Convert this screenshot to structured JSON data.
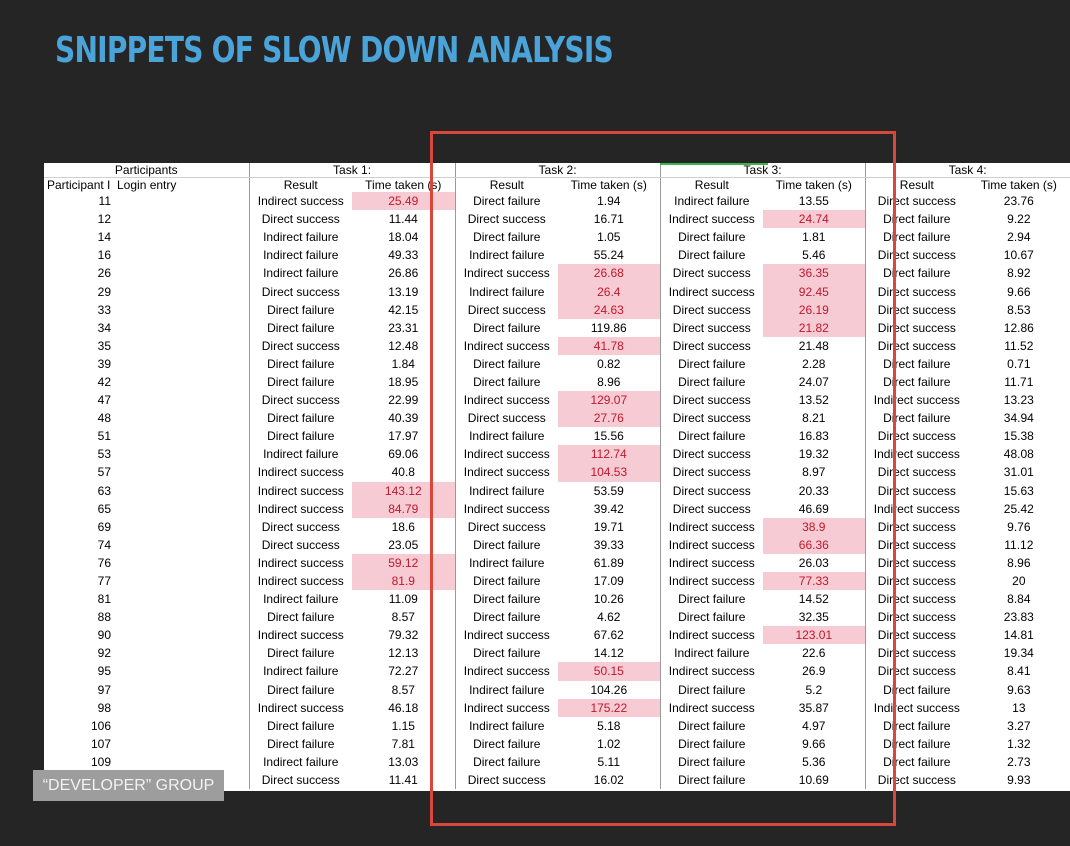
{
  "title": "SNIPPETS OF SLOW DOWN ANALYSIS",
  "badge": "“DEVELOPER” GROUP",
  "colors": {
    "title": "#4aa3d9",
    "highlight_fill": "#f6cbd3",
    "highlight_text": "#c0172d",
    "box": "#d9473b"
  },
  "table": {
    "group_headers": [
      "Participants",
      "Task 1:",
      "Task 2:",
      "Task 3:",
      "Task 4:"
    ],
    "col_headers": [
      "Participant I",
      "Login entry",
      "Result",
      "Time taken (s)",
      "Result",
      "Time taken (s)",
      "Result",
      "Time taken (s)",
      "Result",
      "Time taken (s)"
    ],
    "rows": [
      [
        "11",
        "Indirect success",
        "25.49",
        "Direct failure",
        "1.94",
        "Indirect failure",
        "13.55",
        "Direct success",
        "23.76"
      ],
      [
        "12",
        "Direct success",
        "11.44",
        "Direct success",
        "16.71",
        "Indirect success",
        "24.74",
        "Direct failure",
        "9.22"
      ],
      [
        "14",
        "Indirect failure",
        "18.04",
        "Direct failure",
        "1.05",
        "Direct failure",
        "1.81",
        "Direct failure",
        "2.94"
      ],
      [
        "16",
        "Indirect failure",
        "49.33",
        "Indirect failure",
        "55.24",
        "Direct failure",
        "5.46",
        "Direct success",
        "10.67"
      ],
      [
        "26",
        "Indirect failure",
        "26.86",
        "Indirect success",
        "26.68",
        "Direct success",
        "36.35",
        "Direct failure",
        "8.92"
      ],
      [
        "29",
        "Direct success",
        "13.19",
        "Indirect failure",
        "26.4",
        "Indirect success",
        "92.45",
        "Direct success",
        "9.66"
      ],
      [
        "33",
        "Direct failure",
        "42.15",
        "Direct success",
        "24.63",
        "Direct success",
        "26.19",
        "Direct success",
        "8.53"
      ],
      [
        "34",
        "Direct failure",
        "23.31",
        "Direct failure",
        "119.86",
        "Direct success",
        "21.82",
        "Direct success",
        "12.86"
      ],
      [
        "35",
        "Direct success",
        "12.48",
        "Indirect success",
        "41.78",
        "Direct success",
        "21.48",
        "Direct success",
        "11.52"
      ],
      [
        "39",
        "Direct failure",
        "1.84",
        "Direct failure",
        "0.82",
        "Direct failure",
        "2.28",
        "Direct failure",
        "0.71"
      ],
      [
        "42",
        "Direct failure",
        "18.95",
        "Direct failure",
        "8.96",
        "Direct failure",
        "24.07",
        "Direct failure",
        "11.71"
      ],
      [
        "47",
        "Direct success",
        "22.99",
        "Indirect success",
        "129.07",
        "Direct success",
        "13.52",
        "Indirect success",
        "13.23"
      ],
      [
        "48",
        "Direct failure",
        "40.39",
        "Direct success",
        "27.76",
        "Direct success",
        "8.21",
        "Direct failure",
        "34.94"
      ],
      [
        "51",
        "Direct failure",
        "17.97",
        "Indirect failure",
        "15.56",
        "Direct failure",
        "16.83",
        "Direct success",
        "15.38"
      ],
      [
        "53",
        "Indirect failure",
        "69.06",
        "Indirect success",
        "112.74",
        "Direct success",
        "19.32",
        "Indirect success",
        "48.08"
      ],
      [
        "57",
        "Indirect success",
        "40.8",
        "Indirect success",
        "104.53",
        "Direct success",
        "8.97",
        "Direct success",
        "31.01"
      ],
      [
        "63",
        "Indirect success",
        "143.12",
        "Indirect failure",
        "53.59",
        "Direct success",
        "20.33",
        "Direct success",
        "15.63"
      ],
      [
        "65",
        "Indirect success",
        "84.79",
        "Indirect success",
        "39.42",
        "Direct success",
        "46.69",
        "Indirect success",
        "25.42"
      ],
      [
        "69",
        "Direct success",
        "18.6",
        "Direct success",
        "19.71",
        "Indirect success",
        "38.9",
        "Direct success",
        "9.76"
      ],
      [
        "74",
        "Direct success",
        "23.05",
        "Direct failure",
        "39.33",
        "Indirect success",
        "66.36",
        "Direct success",
        "11.12"
      ],
      [
        "76",
        "Indirect success",
        "59.12",
        "Indirect failure",
        "61.89",
        "Indirect success",
        "26.03",
        "Direct success",
        "8.96"
      ],
      [
        "77",
        "Indirect success",
        "81.9",
        "Direct failure",
        "17.09",
        "Indirect success",
        "77.33",
        "Direct success",
        "20"
      ],
      [
        "81",
        "Indirect failure",
        "11.09",
        "Direct failure",
        "10.26",
        "Direct failure",
        "14.52",
        "Direct success",
        "8.84"
      ],
      [
        "88",
        "Direct failure",
        "8.57",
        "Direct failure",
        "4.62",
        "Direct failure",
        "32.35",
        "Direct success",
        "23.83"
      ],
      [
        "90",
        "Indirect success",
        "79.32",
        "Indirect success",
        "67.62",
        "Indirect success",
        "123.01",
        "Direct success",
        "14.81"
      ],
      [
        "92",
        "Direct failure",
        "12.13",
        "Direct failure",
        "14.12",
        "Indirect failure",
        "22.6",
        "Direct success",
        "19.34"
      ],
      [
        "95",
        "Indirect failure",
        "72.27",
        "Indirect success",
        "50.15",
        "Indirect success",
        "26.9",
        "Direct success",
        "8.41"
      ],
      [
        "97",
        "Direct failure",
        "8.57",
        "Indirect failure",
        "104.26",
        "Direct failure",
        "5.2",
        "Direct failure",
        "9.63"
      ],
      [
        "98",
        "Indirect success",
        "46.18",
        "Indirect success",
        "175.22",
        "Indirect success",
        "35.87",
        "Indirect success",
        "13"
      ],
      [
        "106",
        "Direct failure",
        "1.15",
        "Indirect failure",
        "5.18",
        "Direct failure",
        "4.97",
        "Direct failure",
        "3.27"
      ],
      [
        "107",
        "Direct failure",
        "7.81",
        "Direct failure",
        "1.02",
        "Direct failure",
        "9.66",
        "Direct failure",
        "1.32"
      ],
      [
        "109",
        "Indirect failure",
        "13.03",
        "Direct failure",
        "5.11",
        "Direct failure",
        "5.36",
        "Direct failure",
        "2.73"
      ],
      [
        "",
        "Direct success",
        "11.41",
        "Direct success",
        "16.02",
        "Direct failure",
        "10.69",
        "Direct success",
        "9.93"
      ]
    ],
    "highlighted": [
      [
        0,
        2
      ],
      [
        1,
        6
      ],
      [
        4,
        4
      ],
      [
        4,
        6
      ],
      [
        5,
        4
      ],
      [
        5,
        6
      ],
      [
        6,
        4
      ],
      [
        6,
        6
      ],
      [
        7,
        6
      ],
      [
        8,
        4
      ],
      [
        11,
        4
      ],
      [
        12,
        4
      ],
      [
        14,
        4
      ],
      [
        15,
        4
      ],
      [
        16,
        2
      ],
      [
        17,
        2
      ],
      [
        18,
        6
      ],
      [
        19,
        6
      ],
      [
        20,
        2
      ],
      [
        21,
        2
      ],
      [
        21,
        6
      ],
      [
        24,
        6
      ],
      [
        26,
        4
      ],
      [
        28,
        4
      ]
    ]
  }
}
